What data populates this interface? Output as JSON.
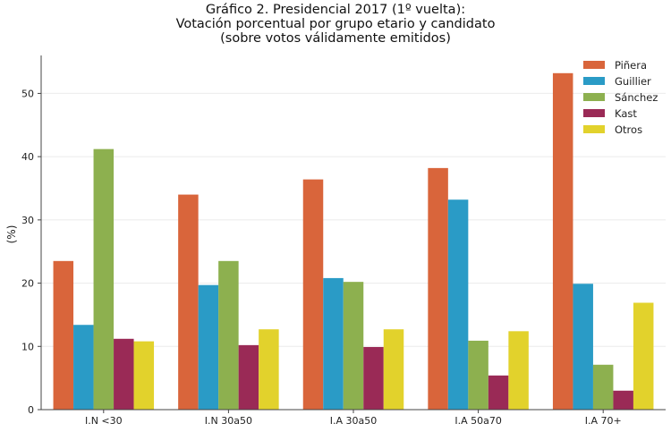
{
  "chart_data": {
    "type": "bar",
    "title": "Gráfico 2. Presidencial 2017 (1º vuelta):",
    "subtitle": "Votación porcentual por grupo etario y candidato",
    "subtitle2": "(sobre votos válidamente emitidos)",
    "xlabel": "",
    "ylabel": "(%)",
    "ylim": [
      0,
      56
    ],
    "yticks": [
      0,
      10,
      20,
      30,
      40,
      50
    ],
    "grid": true,
    "legend_position": "top-right",
    "categories": [
      "I.N <30",
      "I.N 30a50",
      "I.A 30a50",
      "I.A 50a70",
      "I.A 70+"
    ],
    "series": [
      {
        "name": "Piñera",
        "color": "#d9653b",
        "values": [
          23.5,
          34.0,
          36.4,
          38.2,
          53.2
        ]
      },
      {
        "name": "Guillier",
        "color": "#2a9bc6",
        "values": [
          13.4,
          19.7,
          20.8,
          33.2,
          19.9
        ]
      },
      {
        "name": "Sánchez",
        "color": "#8db04f",
        "values": [
          41.2,
          23.5,
          20.2,
          10.9,
          7.1
        ]
      },
      {
        "name": "Kast",
        "color": "#9a2a56",
        "values": [
          11.2,
          10.2,
          9.9,
          5.4,
          3.0
        ]
      },
      {
        "name": "Otros",
        "color": "#e2d22c",
        "values": [
          10.8,
          12.7,
          12.7,
          12.4,
          16.9
        ]
      }
    ]
  }
}
